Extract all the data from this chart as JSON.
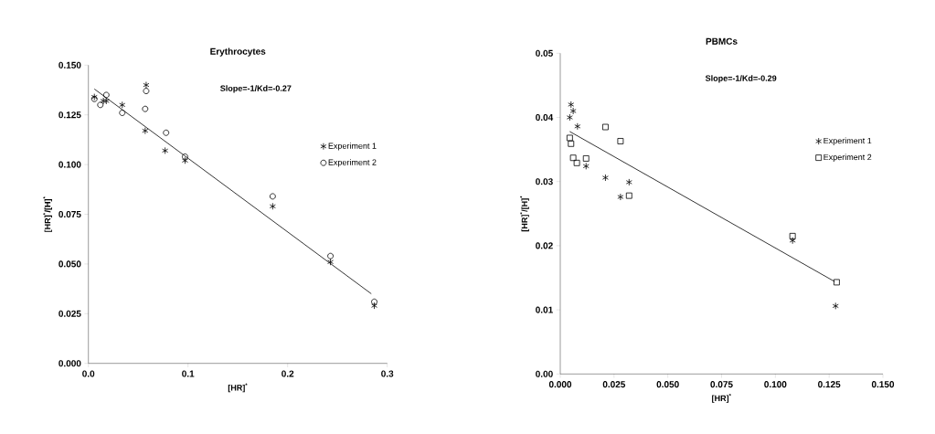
{
  "chart_data": [
    {
      "type": "scatter",
      "title": "Erythrocytes",
      "xlabel": "[HR]$^{*}$",
      "ylabel": "[HR]$^{*}$/[H]$^{*}$",
      "annotations": [
        "Slope=-1/Kd=-0.27"
      ],
      "xlim": [
        0,
        0.3
      ],
      "ylim": [
        0,
        0.15
      ],
      "xticks": [
        {
          "value": 0,
          "label": "0.0"
        },
        0.1,
        0.2,
        0.3
      ],
      "yticks": [
        {
          "value": 0,
          "label": "0.000"
        },
        {
          "value": 0.025,
          "label": "0.025"
        },
        {
          "value": 0.05,
          "label": "0.050"
        },
        {
          "value": 0.075,
          "label": "0.075"
        },
        {
          "value": 0.1,
          "label": "0.100"
        },
        {
          "value": 0.125,
          "label": "0.125"
        },
        {
          "value": 0.15,
          "label": "0.150"
        }
      ],
      "legend": "right",
      "series": [
        {
          "name": "Experiment 1",
          "color": "#000000",
          "marker": "cross",
          "x": [
            0.006,
            0.015,
            0.018,
            0.034,
            0.058,
            0.057,
            0.077,
            0.097,
            0.185,
            0.243,
            0.287
          ],
          "values": [
            0.134,
            0.132,
            0.132,
            0.13,
            0.14,
            0.117,
            0.107,
            0.102,
            0.079,
            0.051,
            0.029
          ]
        },
        {
          "name": "Experiment 2",
          "color": "#000000",
          "marker": "circle",
          "x": [
            0.006,
            0.012,
            0.018,
            0.034,
            0.058,
            0.057,
            0.078,
            0.097,
            0.185,
            0.243,
            0.287
          ],
          "values": [
            0.133,
            0.13,
            0.135,
            0.126,
            0.137,
            0.128,
            0.116,
            0.104,
            0.084,
            0.054,
            0.031
          ]
        },
        {
          "type": "line",
          "color": "#000000",
          "marker": "none",
          "x": [
            0.006,
            0.284
          ],
          "values": [
            0.138,
            0.035
          ]
        }
      ]
    },
    {
      "type": "scatter",
      "title": "PBMCs",
      "xlabel": "[HR]$^{*}$",
      "ylabel": "[HR]$^{*}$/[H]$^{*}$",
      "annotations": [
        "Slope=-1/Kd=-0.29"
      ],
      "xlim": [
        0,
        0.15
      ],
      "ylim": [
        0,
        0.05
      ],
      "xticks": [
        {
          "value": 0,
          "label": "0.000"
        },
        {
          "value": 0.025,
          "label": "0.025"
        },
        {
          "value": 0.05,
          "label": "0.050"
        },
        {
          "value": 0.075,
          "label": "0.075"
        },
        {
          "value": 0.1,
          "label": "0.100"
        },
        {
          "value": 0.125,
          "label": "0.125"
        },
        {
          "value": 0.15,
          "label": "0.150"
        }
      ],
      "yticks": [
        {
          "value": 0,
          "label": "0.00"
        },
        0.01,
        0.02,
        0.03,
        0.04,
        0.05
      ],
      "legend": "right",
      "series": [
        {
          "name": "Experiment 1",
          "color": "#000000",
          "marker": "cross",
          "x": [
            0.005,
            0.006,
            0.0044,
            0.008,
            0.012,
            0.021,
            0.028,
            0.032,
            0.108,
            0.128
          ],
          "values": [
            0.042,
            0.041,
            0.04,
            0.0386,
            0.0324,
            0.0306,
            0.0276,
            0.0299,
            0.0208,
            0.0106
          ]
        },
        {
          "name": "Experiment 2",
          "color": "#000000",
          "marker": "square",
          "x": [
            0.0044,
            0.005,
            0.006,
            0.0077,
            0.012,
            0.021,
            0.028,
            0.032,
            0.108,
            0.1285
          ],
          "values": [
            0.0368,
            0.0359,
            0.0337,
            0.0329,
            0.0336,
            0.0385,
            0.0363,
            0.0278,
            0.0215,
            0.0143
          ]
        },
        {
          "type": "line",
          "color": "#000000",
          "marker": "none",
          "x": [
            0.0044,
            0.1276
          ],
          "values": [
            0.0378,
            0.0144
          ]
        }
      ]
    }
  ]
}
